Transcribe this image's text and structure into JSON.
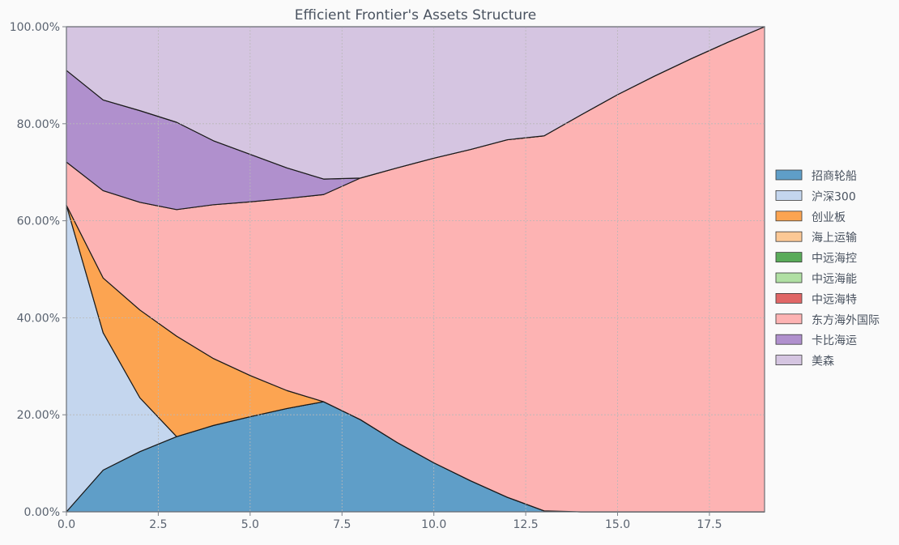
{
  "chart_data": {
    "type": "area",
    "stacked": true,
    "title": "Efficient Frontier's Assets Structure",
    "xlabel": "",
    "ylabel": "",
    "xlim": [
      0,
      19
    ],
    "ylim": [
      0,
      1
    ],
    "grid": true,
    "legend_position": "right",
    "x": [
      0,
      1,
      2,
      3,
      4,
      5,
      6,
      7,
      8,
      9,
      10,
      11,
      12,
      13,
      14,
      15,
      16,
      17,
      18,
      19
    ],
    "x_ticks": [
      0,
      2.5,
      5,
      7.5,
      10,
      12.5,
      15,
      17.5
    ],
    "x_tick_labels": [
      "0.0",
      "2.5",
      "5.0",
      "7.5",
      "10.0",
      "12.5",
      "15.0",
      "17.5"
    ],
    "y_ticks": [
      0,
      0.2,
      0.4,
      0.6,
      0.8,
      1.0
    ],
    "y_tick_labels": [
      "0.00%",
      "20.00%",
      "40.00%",
      "60.00%",
      "80.00%",
      "100.00%"
    ],
    "series": [
      {
        "name": "招商轮船",
        "color": "#5f9ec8",
        "values": [
          0,
          0.086,
          0.124,
          0.155,
          0.178,
          0.196,
          0.213,
          0.227,
          0.19,
          0.143,
          0.101,
          0.064,
          0.03,
          0.002,
          0,
          0,
          0,
          0,
          0,
          0
        ]
      },
      {
        "name": "沪深300",
        "color": "#c4d6ee",
        "values": [
          0.632,
          0.283,
          0.111,
          0,
          0,
          0,
          0,
          0,
          0,
          0,
          0,
          0,
          0,
          0,
          0,
          0,
          0,
          0,
          0,
          0
        ]
      },
      {
        "name": "创业板",
        "color": "#fca451",
        "values": [
          0,
          0.113,
          0.181,
          0.207,
          0.138,
          0.085,
          0.037,
          0,
          0,
          0,
          0,
          0,
          0,
          0,
          0,
          0,
          0,
          0,
          0,
          0
        ]
      },
      {
        "name": "海上运输",
        "color": "#fcc895",
        "values": [
          0,
          0,
          0,
          0,
          0,
          0,
          0,
          0,
          0,
          0,
          0,
          0,
          0,
          0,
          0,
          0,
          0,
          0,
          0,
          0
        ]
      },
      {
        "name": "中远海控",
        "color": "#5aab5a",
        "values": [
          0,
          0,
          0,
          0,
          0,
          0,
          0,
          0,
          0,
          0,
          0,
          0,
          0,
          0,
          0,
          0,
          0,
          0,
          0,
          0
        ]
      },
      {
        "name": "中远海能",
        "color": "#b0dfa3",
        "values": [
          0,
          0,
          0,
          0,
          0,
          0,
          0,
          0,
          0,
          0,
          0,
          0,
          0,
          0,
          0,
          0,
          0,
          0,
          0,
          0
        ]
      },
      {
        "name": "中远海特",
        "color": "#e06666",
        "values": [
          0,
          0,
          0,
          0,
          0,
          0,
          0,
          0,
          0,
          0,
          0,
          0,
          0,
          0,
          0,
          0,
          0,
          0,
          0,
          0
        ]
      },
      {
        "name": "东方海外国际",
        "color": "#fdb3b3",
        "values": [
          0.089,
          0.18,
          0.222,
          0.261,
          0.317,
          0.358,
          0.396,
          0.427,
          0.498,
          0.566,
          0.628,
          0.683,
          0.737,
          0.773,
          0.818,
          0.86,
          0.898,
          0.934,
          0.968,
          1.0
        ]
      },
      {
        "name": "卡比海运",
        "color": "#b090cd",
        "values": [
          0.189,
          0.187,
          0.189,
          0.18,
          0.132,
          0.098,
          0.063,
          0.032,
          0,
          0,
          0,
          0,
          0,
          0,
          0,
          0,
          0,
          0,
          0,
          0
        ]
      },
      {
        "name": "美森",
        "color": "#d5c5e1",
        "values": [
          0.09,
          0.151,
          0.173,
          0.197,
          0.235,
          0.263,
          0.291,
          0.314,
          0.312,
          0.291,
          0.271,
          0.253,
          0.233,
          0.225,
          0.182,
          0.14,
          0.102,
          0.066,
          0.032,
          0
        ]
      }
    ]
  }
}
